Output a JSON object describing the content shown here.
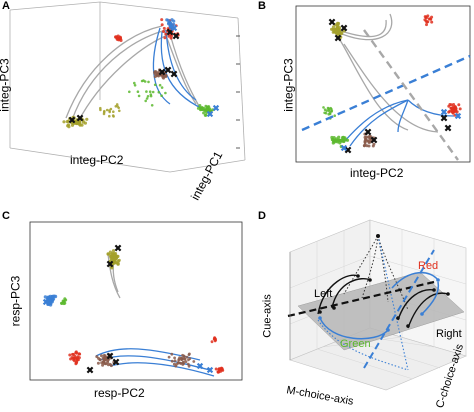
{
  "panels": {
    "a": {
      "label": "A",
      "x_axis": "integ-PC2",
      "y_axis": "integ-PC3",
      "z_axis": "integ-PC1"
    },
    "b": {
      "label": "B",
      "x_axis": "integ-PC2",
      "y_axis": "integ-PC3"
    },
    "c": {
      "label": "C",
      "x_axis": "resp-PC2",
      "y_axis": "resp-PC3"
    },
    "d": {
      "label": "D",
      "x_axis": "M-choice-axis",
      "y_axis": "Cue-axis",
      "z_axis": "C-choice-axis",
      "annotations": {
        "red": "Red",
        "green": "Green",
        "left": "Left",
        "right": "Right"
      }
    }
  },
  "colors": {
    "red": "#e0301e",
    "green": "#5cb82e",
    "olive": "#a3a02a",
    "brown": "#8a5a4a",
    "blue": "#3a7fd5",
    "gray_traj": "#a8a8a8",
    "black": "#111111",
    "plane": "#b8b8b8"
  }
}
